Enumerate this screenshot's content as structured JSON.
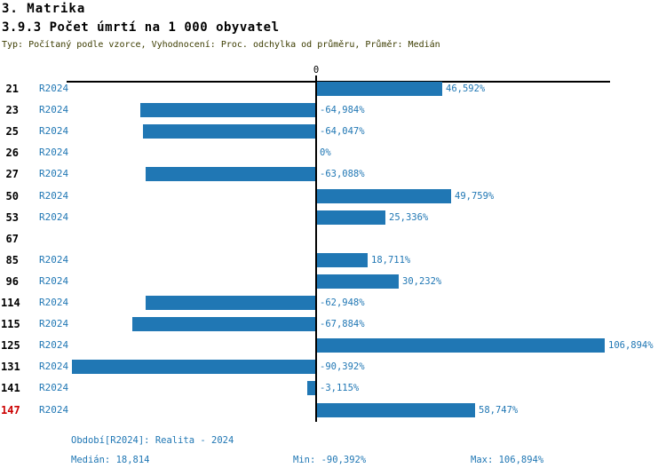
{
  "header": {
    "title": "3. Matrika",
    "subtitle": "3.9.3 Počet úmrtí na 1 000 obyvatel",
    "meta": "Typ: Počítaný podle vzorce, Vyhodnocení: Proc. odchylka od průměru, Průměr: Medián"
  },
  "chart_data": {
    "type": "bar",
    "orientation": "horizontal",
    "title": "3.9.3 Počet úmrtí na 1 000 obyvatel",
    "axis_zero_label": "0",
    "xlim": [
      -92.8,
      109.3
    ],
    "grid": false,
    "legend": false,
    "unit": "%",
    "series_name": "R2024",
    "rows": [
      {
        "id": "21",
        "series": "R2024",
        "value": 46.592,
        "label": "46,592%",
        "highlight": false
      },
      {
        "id": "23",
        "series": "R2024",
        "value": -64.984,
        "label": "-64,984%",
        "highlight": false
      },
      {
        "id": "25",
        "series": "R2024",
        "value": -64.047,
        "label": "-64,047%",
        "highlight": false
      },
      {
        "id": "26",
        "series": "R2024",
        "value": 0,
        "label": "0%",
        "highlight": false
      },
      {
        "id": "27",
        "series": "R2024",
        "value": -63.088,
        "label": "-63,088%",
        "highlight": false
      },
      {
        "id": "50",
        "series": "R2024",
        "value": 49.759,
        "label": "49,759%",
        "highlight": false
      },
      {
        "id": "53",
        "series": "R2024",
        "value": 25.336,
        "label": "25,336%",
        "highlight": false
      },
      {
        "id": "67",
        "series": null,
        "value": null,
        "label": null,
        "highlight": false
      },
      {
        "id": "85",
        "series": "R2024",
        "value": 18.711,
        "label": "18,711%",
        "highlight": false
      },
      {
        "id": "96",
        "series": "R2024",
        "value": 30.232,
        "label": "30,232%",
        "highlight": false
      },
      {
        "id": "114",
        "series": "R2024",
        "value": -62.948,
        "label": "-62,948%",
        "highlight": false
      },
      {
        "id": "115",
        "series": "R2024",
        "value": -67.884,
        "label": "-67,884%",
        "highlight": false
      },
      {
        "id": "125",
        "series": "R2024",
        "value": 106.894,
        "label": "106,894%",
        "highlight": false
      },
      {
        "id": "131",
        "series": "R2024",
        "value": -90.392,
        "label": "-90,392%",
        "highlight": false
      },
      {
        "id": "141",
        "series": "R2024",
        "value": -3.115,
        "label": "-3,115%",
        "highlight": false
      },
      {
        "id": "147",
        "series": "R2024",
        "value": 58.747,
        "label": "58,747%",
        "highlight": true
      }
    ],
    "colors": {
      "bar": "#2077b4",
      "blue_text": "#2077b4",
      "highlight_row": "#cc0000",
      "subtitle_text": "#3c3c00",
      "axis": "#000000"
    }
  },
  "footer": {
    "period": "Období[R2024]: Realita - 2024",
    "median": "Medián: 18,814",
    "min": "Min: -90,392%",
    "max": "Max: 106,894%"
  }
}
